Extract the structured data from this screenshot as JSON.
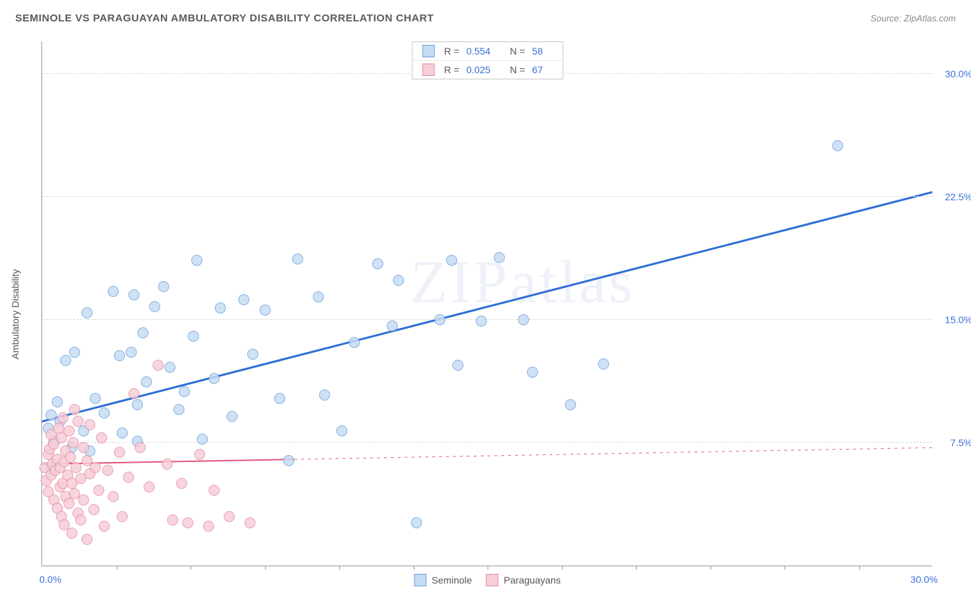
{
  "header": {
    "title": "SEMINOLE VS PARAGUAYAN AMBULATORY DISABILITY CORRELATION CHART",
    "source": "Source: ZipAtlas.com"
  },
  "watermark": "ZIPatlas",
  "chart": {
    "type": "scatter",
    "y_axis_title": "Ambulatory Disability",
    "xlim": [
      0,
      30
    ],
    "ylim": [
      0,
      32
    ],
    "x_tick_step": 2.5,
    "y_ticks": [
      7.5,
      15.0,
      22.5,
      30.0
    ],
    "y_tick_labels": [
      "7.5%",
      "15.0%",
      "22.5%",
      "30.0%"
    ],
    "x_label_min": "0.0%",
    "x_label_max": "30.0%",
    "background_color": "#ffffff",
    "grid_color": "#d8d8d8",
    "axis_color": "#999999",
    "label_color": "#3b6fd6",
    "marker_radius": 8,
    "series": [
      {
        "name": "Seminole",
        "fill": "#c5dbf4",
        "stroke": "#6a9fd8",
        "swatch_fill": "#c5dbf4",
        "swatch_stroke": "#6a9fd8",
        "r_value": "0.554",
        "n_value": "58",
        "trend": {
          "y_at_x0": 8.8,
          "y_at_x30": 22.8,
          "color": "#2f6fd6",
          "width": 3,
          "dash": "none"
        },
        "points": [
          [
            0.2,
            8.4
          ],
          [
            0.3,
            9.2
          ],
          [
            0.5,
            10.0
          ],
          [
            0.4,
            7.6
          ],
          [
            0.6,
            8.8
          ],
          [
            0.8,
            12.5
          ],
          [
            1.0,
            7.2
          ],
          [
            1.1,
            13.0
          ],
          [
            1.4,
            8.2
          ],
          [
            1.5,
            15.4
          ],
          [
            1.8,
            10.2
          ],
          [
            1.6,
            7.0
          ],
          [
            2.1,
            9.3
          ],
          [
            2.4,
            16.7
          ],
          [
            2.6,
            12.8
          ],
          [
            2.7,
            8.1
          ],
          [
            3.0,
            13.0
          ],
          [
            3.2,
            9.8
          ],
          [
            3.1,
            16.5
          ],
          [
            3.2,
            7.6
          ],
          [
            3.4,
            14.2
          ],
          [
            3.5,
            11.2
          ],
          [
            3.8,
            15.8
          ],
          [
            4.1,
            17.0
          ],
          [
            4.3,
            12.1
          ],
          [
            4.6,
            9.5
          ],
          [
            4.8,
            10.6
          ],
          [
            5.1,
            14.0
          ],
          [
            5.4,
            7.7
          ],
          [
            5.2,
            18.6
          ],
          [
            5.8,
            11.4
          ],
          [
            6.0,
            15.7
          ],
          [
            6.4,
            9.1
          ],
          [
            6.8,
            16.2
          ],
          [
            7.1,
            12.9
          ],
          [
            7.5,
            15.6
          ],
          [
            8.0,
            10.2
          ],
          [
            8.3,
            6.4
          ],
          [
            8.6,
            18.7
          ],
          [
            9.3,
            16.4
          ],
          [
            9.5,
            10.4
          ],
          [
            10.1,
            8.2
          ],
          [
            10.5,
            13.6
          ],
          [
            11.3,
            18.4
          ],
          [
            11.8,
            14.6
          ],
          [
            12.0,
            17.4
          ],
          [
            12.6,
            2.6
          ],
          [
            13.4,
            15.0
          ],
          [
            13.8,
            18.6
          ],
          [
            14.0,
            12.2
          ],
          [
            14.8,
            14.9
          ],
          [
            15.4,
            18.8
          ],
          [
            16.2,
            15.0
          ],
          [
            16.5,
            11.8
          ],
          [
            17.8,
            9.8
          ],
          [
            18.9,
            12.3
          ],
          [
            26.8,
            25.6
          ],
          [
            0.3,
            6.0
          ]
        ]
      },
      {
        "name": "Paraguayans",
        "fill": "#f7cdd7",
        "stroke": "#e48aa0",
        "swatch_fill": "#f7cdd7",
        "swatch_stroke": "#e48aa0",
        "r_value": "0.025",
        "n_value": "67",
        "trend": {
          "y_at_x0": 6.2,
          "y_at_x30": 7.2,
          "color": "#e25578",
          "width": 2,
          "dash_solid_until_x": 8.5,
          "dash": "4 6"
        },
        "points": [
          [
            0.1,
            6.0
          ],
          [
            0.15,
            5.2
          ],
          [
            0.2,
            6.8
          ],
          [
            0.2,
            4.5
          ],
          [
            0.25,
            7.1
          ],
          [
            0.3,
            5.5
          ],
          [
            0.3,
            8.0
          ],
          [
            0.35,
            6.2
          ],
          [
            0.4,
            4.0
          ],
          [
            0.4,
            7.4
          ],
          [
            0.45,
            5.8
          ],
          [
            0.5,
            3.5
          ],
          [
            0.5,
            6.5
          ],
          [
            0.55,
            8.4
          ],
          [
            0.6,
            4.8
          ],
          [
            0.6,
            6.0
          ],
          [
            0.65,
            7.8
          ],
          [
            0.65,
            3.0
          ],
          [
            0.7,
            5.0
          ],
          [
            0.7,
            9.0
          ],
          [
            0.75,
            6.3
          ],
          [
            0.75,
            2.5
          ],
          [
            0.8,
            4.2
          ],
          [
            0.8,
            7.0
          ],
          [
            0.85,
            5.5
          ],
          [
            0.9,
            8.2
          ],
          [
            0.9,
            3.8
          ],
          [
            0.95,
            6.6
          ],
          [
            1.0,
            2.0
          ],
          [
            1.0,
            5.0
          ],
          [
            1.05,
            7.5
          ],
          [
            1.1,
            4.4
          ],
          [
            1.1,
            9.5
          ],
          [
            1.15,
            6.0
          ],
          [
            1.2,
            3.2
          ],
          [
            1.2,
            8.8
          ],
          [
            1.3,
            5.3
          ],
          [
            1.3,
            2.8
          ],
          [
            1.4,
            7.2
          ],
          [
            1.4,
            4.0
          ],
          [
            1.5,
            6.4
          ],
          [
            1.5,
            1.6
          ],
          [
            1.6,
            5.6
          ],
          [
            1.6,
            8.6
          ],
          [
            1.75,
            3.4
          ],
          [
            1.8,
            6.0
          ],
          [
            1.9,
            4.6
          ],
          [
            2.0,
            7.8
          ],
          [
            2.1,
            2.4
          ],
          [
            2.2,
            5.8
          ],
          [
            2.4,
            4.2
          ],
          [
            2.6,
            6.9
          ],
          [
            2.7,
            3.0
          ],
          [
            2.9,
            5.4
          ],
          [
            3.1,
            10.5
          ],
          [
            3.3,
            7.2
          ],
          [
            3.6,
            4.8
          ],
          [
            3.9,
            12.2
          ],
          [
            4.2,
            6.2
          ],
          [
            4.4,
            2.8
          ],
          [
            4.7,
            5.0
          ],
          [
            4.9,
            2.6
          ],
          [
            5.3,
            6.8
          ],
          [
            5.6,
            2.4
          ],
          [
            5.8,
            4.6
          ],
          [
            6.3,
            3.0
          ],
          [
            7.0,
            2.6
          ]
        ]
      }
    ],
    "bottom_legend": [
      {
        "label": "Seminole",
        "fill": "#c5dbf4",
        "stroke": "#6a9fd8"
      },
      {
        "label": "Paraguayans",
        "fill": "#f7cdd7",
        "stroke": "#e48aa0"
      }
    ]
  }
}
